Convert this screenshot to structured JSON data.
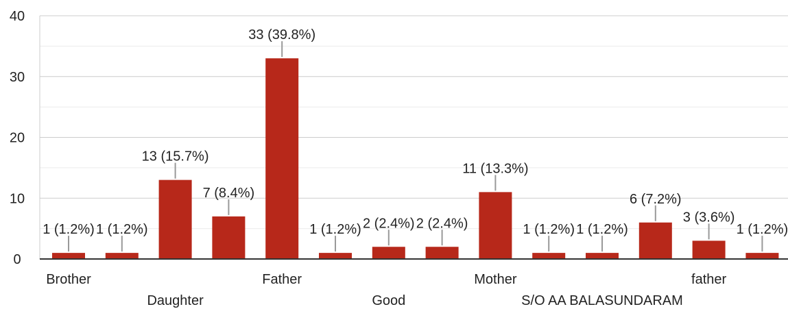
{
  "chart_data": {
    "type": "bar",
    "title": "",
    "xlabel": "",
    "ylabel": "",
    "ylim": [
      0,
      40
    ],
    "yticks": [
      0,
      10,
      20,
      30,
      40
    ],
    "grid": true,
    "bar_color": "#b7281a",
    "categories": [
      "Brother",
      "",
      "Daughter",
      "",
      "Father",
      "",
      "Good",
      "",
      "Mother",
      "",
      "S/O AA BALASUNDARAM",
      "",
      "father",
      ""
    ],
    "values": [
      1,
      1,
      13,
      7,
      33,
      1,
      2,
      2,
      11,
      1,
      1,
      6,
      3,
      1
    ],
    "labels": [
      "1 (1.2%)",
      "1 (1.2%)",
      "13 (15.7%)",
      "7 (8.4%)",
      "33 (39.8%)",
      "1 (1.2%)",
      "2 (2.4%)",
      "2 (2.4%)",
      "11 (13.3%)",
      "1 (1.2%)",
      "1 (1.2%)",
      "6 (7.2%)",
      "3 (3.6%)",
      "1 (1.2%)"
    ]
  }
}
